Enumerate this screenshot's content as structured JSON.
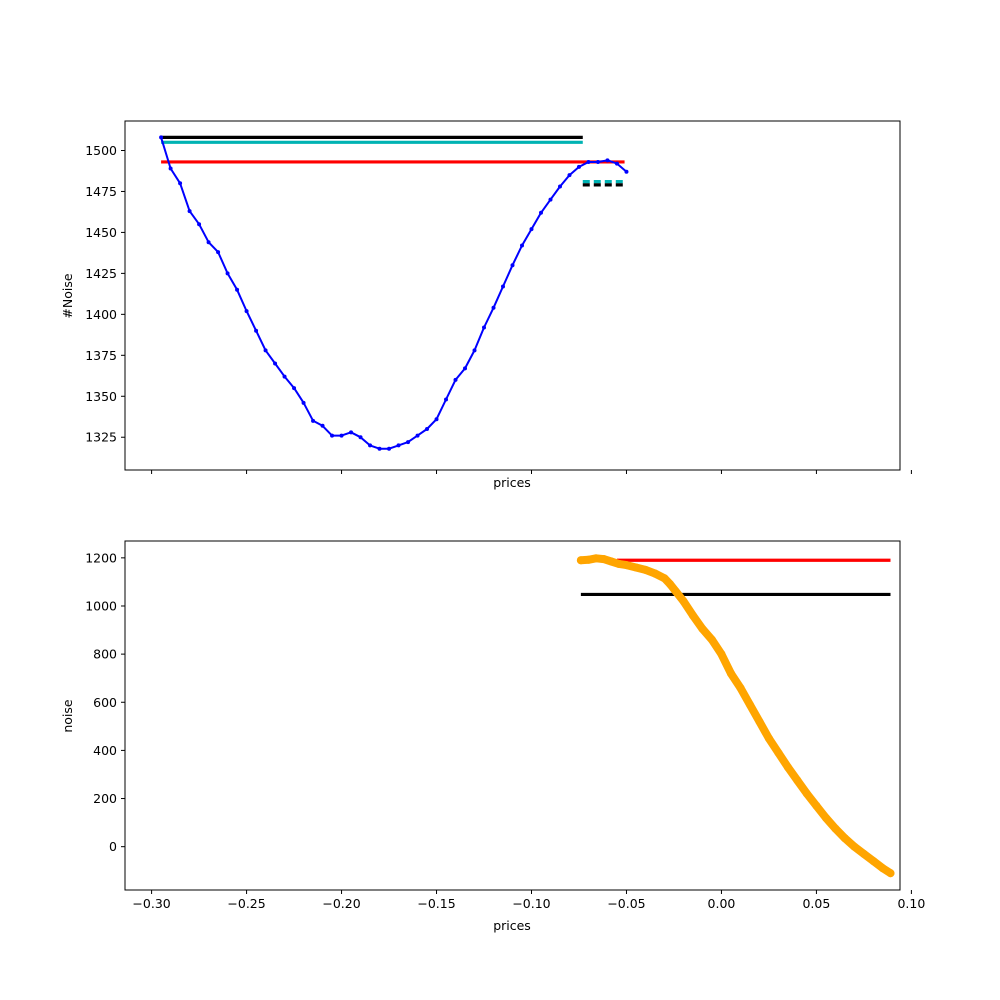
{
  "chart_data": [
    {
      "type": "line",
      "xlabel": "prices",
      "ylabel": "#Noise",
      "xlim": [
        -0.314,
        0.094
      ],
      "ylim": [
        1305,
        1518
      ],
      "yticks": [
        1325,
        1350,
        1375,
        1400,
        1425,
        1450,
        1475,
        1500
      ],
      "show_x_tick_labels": false,
      "grid": false,
      "series": [
        {
          "color": "#0000ff",
          "style": "line-with-dot-markers",
          "x": [
            -0.295,
            -0.29,
            -0.285,
            -0.28,
            -0.275,
            -0.27,
            -0.265,
            -0.26,
            -0.255,
            -0.25,
            -0.245,
            -0.24,
            -0.235,
            -0.23,
            -0.225,
            -0.22,
            -0.215,
            -0.21,
            -0.205,
            -0.2,
            -0.195,
            -0.19,
            -0.185,
            -0.18,
            -0.175,
            -0.17,
            -0.165,
            -0.16,
            -0.155,
            -0.15,
            -0.145,
            -0.14,
            -0.135,
            -0.13,
            -0.125,
            -0.12,
            -0.115,
            -0.11,
            -0.105,
            -0.1,
            -0.095,
            -0.09,
            -0.085,
            -0.08,
            -0.075,
            -0.07,
            -0.065,
            -0.06,
            -0.055,
            -0.05
          ],
          "y": [
            1508,
            1489,
            1480,
            1463,
            1455,
            1444,
            1438,
            1425,
            1415,
            1402,
            1390,
            1378,
            1370,
            1362,
            1355,
            1346,
            1335,
            1332,
            1326,
            1326,
            1328,
            1325,
            1320,
            1318,
            1318,
            1320,
            1322,
            1326,
            1330,
            1336,
            1348,
            1360,
            1367,
            1378,
            1392,
            1404,
            1417,
            1430,
            1442,
            1452,
            1462,
            1470,
            1478,
            1485,
            1490,
            1493,
            1493,
            1494,
            1492,
            1487
          ]
        }
      ],
      "hlines": [
        {
          "y": 1508,
          "xmin": -0.295,
          "xmax": -0.073,
          "color": "#000000",
          "style": "solid"
        },
        {
          "y": 1505,
          "xmin": -0.295,
          "xmax": -0.073,
          "color": "#00b3b3",
          "style": "solid"
        },
        {
          "y": 1493,
          "xmin": -0.295,
          "xmax": -0.051,
          "color": "#ff0000",
          "style": "solid"
        },
        {
          "y": 1481,
          "xmin": -0.073,
          "xmax": -0.051,
          "color": "#00b3b3",
          "style": "dashed"
        },
        {
          "y": 1479,
          "xmin": -0.073,
          "xmax": -0.051,
          "color": "#000000",
          "style": "dashed"
        }
      ]
    },
    {
      "type": "scatter",
      "xlabel": "prices",
      "ylabel": "noise",
      "xlim": [
        -0.314,
        0.094
      ],
      "ylim": [
        -180,
        1270
      ],
      "xticks": [
        -0.3,
        -0.25,
        -0.2,
        -0.15,
        -0.1,
        -0.05,
        0.0,
        0.05,
        0.1
      ],
      "xtick_labels": [
        "−0.30",
        "−0.25",
        "−0.20",
        "−0.15",
        "−0.10",
        "−0.05",
        "0.00",
        "0.05",
        "0.10"
      ],
      "yticks": [
        0,
        200,
        400,
        600,
        800,
        1000,
        1200
      ],
      "grid": false,
      "series": [
        {
          "color": "#ffa500",
          "style": "dense-markers",
          "x": [
            -0.074,
            -0.07,
            -0.066,
            -0.062,
            -0.058,
            -0.054,
            -0.05,
            -0.045,
            -0.04,
            -0.035,
            -0.03,
            -0.027,
            -0.024,
            -0.02,
            -0.015,
            -0.01,
            -0.005,
            0.0,
            0.005,
            0.01,
            0.015,
            0.02,
            0.025,
            0.03,
            0.035,
            0.04,
            0.045,
            0.05,
            0.055,
            0.06,
            0.065,
            0.07,
            0.075,
            0.08,
            0.085,
            0.089
          ],
          "y": [
            1190,
            1192,
            1198,
            1195,
            1185,
            1175,
            1170,
            1160,
            1150,
            1135,
            1115,
            1090,
            1060,
            1020,
            960,
            905,
            860,
            800,
            720,
            660,
            590,
            520,
            450,
            390,
            330,
            275,
            220,
            170,
            120,
            75,
            35,
            0,
            -30,
            -60,
            -90,
            -110
          ]
        }
      ],
      "hlines": [
        {
          "y": 1190,
          "xmin": -0.055,
          "xmax": 0.089,
          "color": "#ff0000",
          "style": "solid"
        },
        {
          "y": 1048,
          "xmin": -0.074,
          "xmax": 0.089,
          "color": "#000000",
          "style": "solid"
        }
      ]
    }
  ]
}
